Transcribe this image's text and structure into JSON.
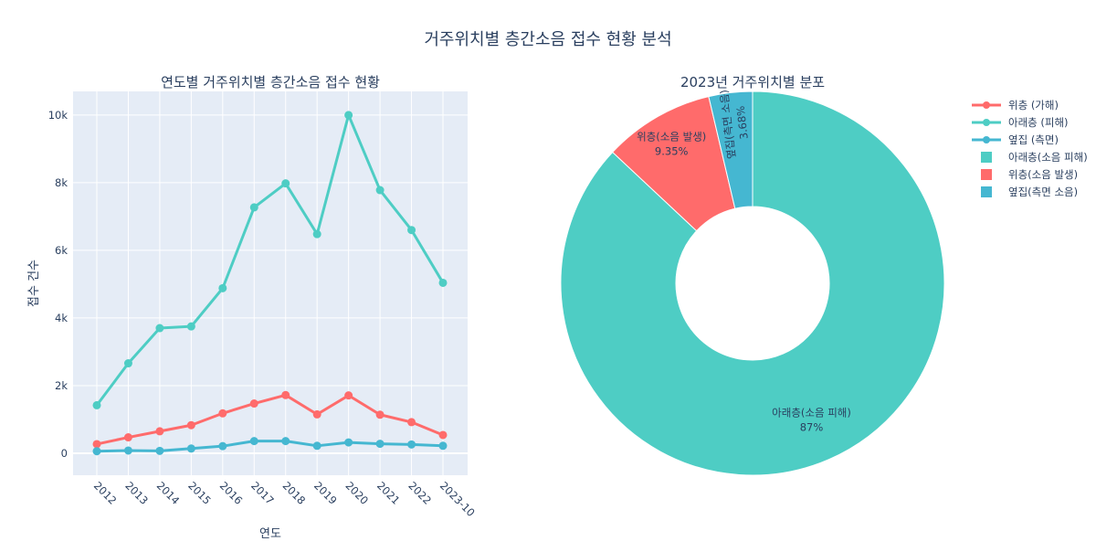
{
  "page_title": "거주위치별 층간소음 접수 현황 분석",
  "chart_data": [
    {
      "type": "line",
      "title": "연도별 거주위치별 층간소음 접수 현황",
      "xlabel": "연도",
      "ylabel": "접수 건수",
      "categories": [
        "2012",
        "2013",
        "2014",
        "2015",
        "2016",
        "2017",
        "2018",
        "2019",
        "2020",
        "2021",
        "2022",
        "2023-10"
      ],
      "ylim": [
        -650,
        10700
      ],
      "yticks": [
        0,
        2000,
        4000,
        6000,
        8000,
        10000
      ],
      "ytick_labels": [
        "0",
        "2k",
        "4k",
        "6k",
        "8k",
        "10k"
      ],
      "grid": true,
      "series": [
        {
          "name": "위층 (가해)",
          "color": "#ff6b6b",
          "values": [
            270,
            470,
            650,
            830,
            1180,
            1470,
            1720,
            1150,
            1710,
            1140,
            920,
            540
          ]
        },
        {
          "name": "아래층 (피해)",
          "color": "#4ecdc4",
          "values": [
            1420,
            2660,
            3700,
            3750,
            4880,
            7270,
            7980,
            6480,
            10000,
            7780,
            6600,
            5040
          ]
        },
        {
          "name": "옆집 (측면)",
          "color": "#45b7d1",
          "values": [
            60,
            80,
            70,
            140,
            210,
            360,
            360,
            220,
            320,
            280,
            260,
            220
          ]
        }
      ]
    },
    {
      "type": "pie",
      "title": "2023년 거주위치별 분포",
      "hole": true,
      "slices": [
        {
          "label": "아래층(소음 피해)",
          "value": 87,
          "percent_text": "87%",
          "color": "#4ecdc4"
        },
        {
          "label": "위층(소음 발생)",
          "value": 9.35,
          "percent_text": "9.35%",
          "color": "#ff6b6b"
        },
        {
          "label": "옆집(측면 소음)",
          "value": 3.68,
          "percent_text": "3.68%",
          "color": "#45b7d1"
        }
      ]
    }
  ]
}
